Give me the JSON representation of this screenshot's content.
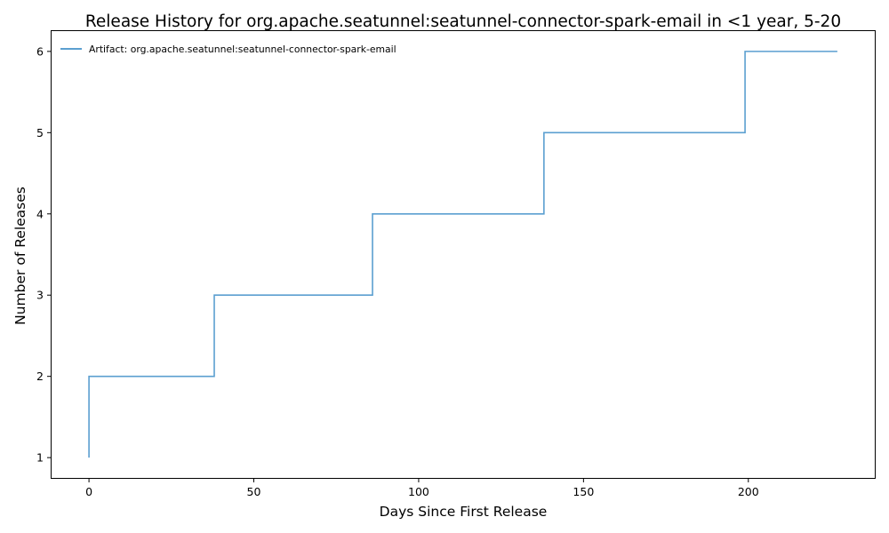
{
  "chart_data": {
    "type": "line",
    "style": "step",
    "title": "Release History for org.apache.seatunnel:seatunnel-connector-spark-email in <1 year, 5-20",
    "xlabel": "Days Since First Release",
    "ylabel": "Number of Releases",
    "xlim": [
      -11.35,
      238.35
    ],
    "ylim": [
      0.75,
      6.25
    ],
    "xticks": [
      0,
      50,
      100,
      150,
      200
    ],
    "yticks": [
      1,
      2,
      3,
      4,
      5,
      6
    ],
    "grid": false,
    "legend_position": "top-left",
    "series": [
      {
        "name": "Artifact: org.apache.seatunnel:seatunnel-connector-spark-email",
        "color": "#5b9fd0",
        "x": [
          0,
          0,
          38,
          86,
          138,
          199,
          227
        ],
        "y": [
          1,
          2,
          3,
          4,
          5,
          6,
          6
        ]
      }
    ]
  }
}
